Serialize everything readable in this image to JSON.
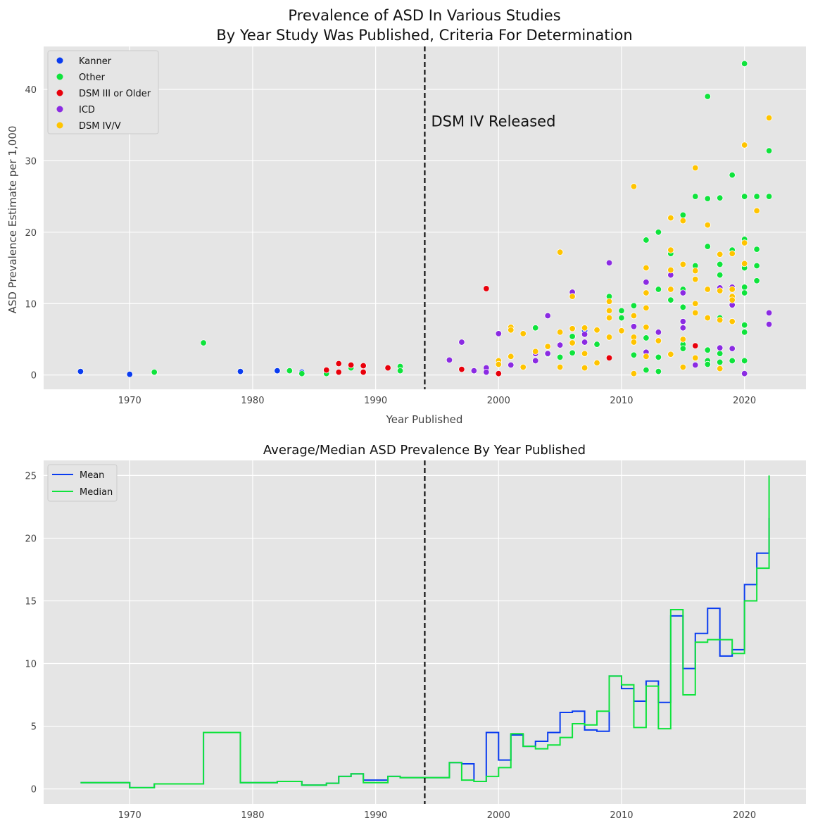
{
  "colors": {
    "kanner": "#0a3cf0",
    "other": "#0fe33c",
    "dsm3": "#e8000b",
    "icd": "#8b2be2",
    "dsm45": "#ffc400",
    "mean": "#0a3cf0",
    "median": "#0fe33c",
    "panel_bg": "#e5e5e5",
    "grid": "#ffffff"
  },
  "chart_data": [
    {
      "type": "scatter",
      "title_line1": "Prevalence of ASD In Various Studies",
      "title_line2": "By Year Study Was Published, Criteria For Determination",
      "xlabel": "Year Published",
      "ylabel": "ASD Prevalence Estimate per 1,000",
      "xlim": [
        1963,
        2025
      ],
      "ylim": [
        -2,
        46
      ],
      "xticks": [
        1970,
        1980,
        1990,
        2000,
        2010,
        2020
      ],
      "yticks": [
        0,
        10,
        20,
        30,
        40
      ],
      "grid": true,
      "legend_position": "top-left",
      "vline": {
        "x": 1994,
        "label": "DSM IV Released",
        "style": "dashed"
      },
      "series": [
        {
          "name": "Kanner",
          "color_key": "kanner",
          "points": [
            [
              1966,
              0.5
            ],
            [
              1970,
              0.1
            ],
            [
              1979,
              0.5
            ],
            [
              1982,
              0.6
            ],
            [
              1984,
              0.4
            ],
            [
              2007,
              6.2
            ]
          ]
        },
        {
          "name": "Other",
          "color_key": "other",
          "points": [
            [
              1972,
              0.4
            ],
            [
              1976,
              4.5
            ],
            [
              1983,
              0.6
            ],
            [
              1984,
              0.2
            ],
            [
              1986,
              0.2
            ],
            [
              1988,
              1.0
            ],
            [
              1992,
              1.2
            ],
            [
              1992,
              0.6
            ],
            [
              2003,
              6.6
            ],
            [
              2004,
              2.9
            ],
            [
              2005,
              2.5
            ],
            [
              2006,
              3.1
            ],
            [
              2006,
              5.4
            ],
            [
              2008,
              4.3
            ],
            [
              2009,
              11.0
            ],
            [
              2010,
              9.0
            ],
            [
              2010,
              8.0
            ],
            [
              2011,
              9.7
            ],
            [
              2011,
              2.8
            ],
            [
              2012,
              18.9
            ],
            [
              2012,
              5.2
            ],
            [
              2012,
              0.7
            ],
            [
              2013,
              20.0
            ],
            [
              2013,
              12.0
            ],
            [
              2013,
              2.5
            ],
            [
              2013,
              0.5
            ],
            [
              2014,
              17.0
            ],
            [
              2014,
              10.5
            ],
            [
              2015,
              22.4
            ],
            [
              2015,
              12.0
            ],
            [
              2015,
              9.5
            ],
            [
              2015,
              4.3
            ],
            [
              2015,
              3.7
            ],
            [
              2016,
              25.0
            ],
            [
              2016,
              15.3
            ],
            [
              2017,
              39.0
            ],
            [
              2017,
              24.7
            ],
            [
              2017,
              18.0
            ],
            [
              2017,
              3.5
            ],
            [
              2017,
              2.0
            ],
            [
              2017,
              1.5
            ],
            [
              2018,
              24.8
            ],
            [
              2018,
              15.5
            ],
            [
              2018,
              14.0
            ],
            [
              2018,
              12.0
            ],
            [
              2018,
              8.0
            ],
            [
              2018,
              3.0
            ],
            [
              2018,
              1.8
            ],
            [
              2019,
              28.0
            ],
            [
              2019,
              17.5
            ],
            [
              2019,
              2.0
            ],
            [
              2020,
              43.6
            ],
            [
              2020,
              25.0
            ],
            [
              2020,
              19.0
            ],
            [
              2020,
              15.0
            ],
            [
              2020,
              12.3
            ],
            [
              2020,
              11.5
            ],
            [
              2020,
              7.0
            ],
            [
              2020,
              6.0
            ],
            [
              2020,
              2.0
            ],
            [
              2021,
              25.0
            ],
            [
              2021,
              17.6
            ],
            [
              2021,
              15.3
            ],
            [
              2021,
              13.2
            ],
            [
              2022,
              31.4
            ],
            [
              2022,
              25.0
            ]
          ]
        },
        {
          "name": "DSM III or Older",
          "color_key": "dsm3",
          "points": [
            [
              1986,
              0.7
            ],
            [
              1987,
              1.6
            ],
            [
              1987,
              0.4
            ],
            [
              1988,
              1.4
            ],
            [
              1989,
              1.3
            ],
            [
              1989,
              0.4
            ],
            [
              1991,
              1.0
            ],
            [
              1997,
              0.8
            ],
            [
              1999,
              12.1
            ],
            [
              2000,
              0.2
            ],
            [
              2009,
              2.4
            ],
            [
              2016,
              4.1
            ]
          ]
        },
        {
          "name": "ICD",
          "color_key": "icd",
          "points": [
            [
              1996,
              2.1
            ],
            [
              1997,
              4.6
            ],
            [
              1998,
              0.6
            ],
            [
              1999,
              1.0
            ],
            [
              1999,
              0.4
            ],
            [
              2000,
              5.8
            ],
            [
              2001,
              1.4
            ],
            [
              2003,
              3.0
            ],
            [
              2003,
              2.0
            ],
            [
              2004,
              8.3
            ],
            [
              2004,
              3.0
            ],
            [
              2005,
              4.2
            ],
            [
              2006,
              11.6
            ],
            [
              2007,
              5.7
            ],
            [
              2007,
              4.6
            ],
            [
              2009,
              15.7
            ],
            [
              2011,
              6.8
            ],
            [
              2012,
              13.0
            ],
            [
              2012,
              3.2
            ],
            [
              2013,
              6.0
            ],
            [
              2014,
              14.0
            ],
            [
              2015,
              11.5
            ],
            [
              2015,
              7.5
            ],
            [
              2015,
              6.6
            ],
            [
              2016,
              1.4
            ],
            [
              2018,
              12.2
            ],
            [
              2018,
              3.8
            ],
            [
              2019,
              12.3
            ],
            [
              2019,
              9.8
            ],
            [
              2019,
              3.7
            ],
            [
              2020,
              0.2
            ],
            [
              2022,
              8.7
            ],
            [
              2022,
              7.1
            ]
          ]
        },
        {
          "name": "DSM IV/V",
          "color_key": "dsm45",
          "points": [
            [
              2000,
              2.0
            ],
            [
              2000,
              1.5
            ],
            [
              2001,
              6.7
            ],
            [
              2001,
              6.3
            ],
            [
              2001,
              2.6
            ],
            [
              2002,
              5.8
            ],
            [
              2002,
              1.1
            ],
            [
              2003,
              3.3
            ],
            [
              2004,
              4.0
            ],
            [
              2005,
              17.2
            ],
            [
              2005,
              6.0
            ],
            [
              2005,
              1.1
            ],
            [
              2006,
              11.0
            ],
            [
              2006,
              6.5
            ],
            [
              2006,
              4.5
            ],
            [
              2007,
              6.6
            ],
            [
              2007,
              3.0
            ],
            [
              2007,
              1.0
            ],
            [
              2008,
              6.3
            ],
            [
              2008,
              1.7
            ],
            [
              2009,
              10.3
            ],
            [
              2009,
              9.0
            ],
            [
              2009,
              8.0
            ],
            [
              2009,
              5.3
            ],
            [
              2010,
              6.2
            ],
            [
              2011,
              26.4
            ],
            [
              2011,
              8.3
            ],
            [
              2011,
              5.3
            ],
            [
              2011,
              4.6
            ],
            [
              2011,
              0.2
            ],
            [
              2012,
              15.0
            ],
            [
              2012,
              11.5
            ],
            [
              2012,
              9.4
            ],
            [
              2012,
              6.7
            ],
            [
              2012,
              2.6
            ],
            [
              2013,
              4.8
            ],
            [
              2014,
              22.0
            ],
            [
              2014,
              17.5
            ],
            [
              2014,
              14.7
            ],
            [
              2014,
              12.0
            ],
            [
              2014,
              2.9
            ],
            [
              2015,
              21.6
            ],
            [
              2015,
              15.5
            ],
            [
              2015,
              5.0
            ],
            [
              2015,
              1.1
            ],
            [
              2016,
              29.0
            ],
            [
              2016,
              14.6
            ],
            [
              2016,
              13.4
            ],
            [
              2016,
              10.0
            ],
            [
              2016,
              8.7
            ],
            [
              2016,
              2.4
            ],
            [
              2017,
              21.0
            ],
            [
              2017,
              12.0
            ],
            [
              2017,
              8.0
            ],
            [
              2018,
              16.9
            ],
            [
              2018,
              11.8
            ],
            [
              2018,
              7.7
            ],
            [
              2018,
              0.9
            ],
            [
              2019,
              17.0
            ],
            [
              2019,
              12.0
            ],
            [
              2019,
              11.0
            ],
            [
              2019,
              10.5
            ],
            [
              2019,
              7.5
            ],
            [
              2020,
              32.2
            ],
            [
              2020,
              18.5
            ],
            [
              2020,
              15.6
            ],
            [
              2021,
              23.0
            ],
            [
              2022,
              36.0
            ]
          ]
        }
      ]
    },
    {
      "type": "line",
      "step": true,
      "title": "Average/Median ASD Prevalence By Year Published",
      "xlim": [
        1963,
        2025
      ],
      "ylim": [
        -1.2,
        26.2
      ],
      "xticks": [
        1970,
        1980,
        1990,
        2000,
        2010,
        2020
      ],
      "yticks": [
        0,
        5,
        10,
        15,
        20,
        25
      ],
      "grid": true,
      "legend_position": "top-left",
      "vline": {
        "x": 1994,
        "style": "dashed"
      },
      "x": [
        1966,
        1970,
        1972,
        1976,
        1979,
        1982,
        1983,
        1984,
        1986,
        1987,
        1988,
        1989,
        1991,
        1992,
        1996,
        1997,
        1998,
        1999,
        2000,
        2001,
        2002,
        2003,
        2004,
        2005,
        2006,
        2007,
        2008,
        2009,
        2010,
        2011,
        2012,
        2013,
        2014,
        2015,
        2016,
        2017,
        2018,
        2019,
        2020,
        2021,
        2022
      ],
      "series": [
        {
          "name": "Mean",
          "color_key": "mean",
          "values": [
            0.5,
            0.1,
            0.4,
            4.5,
            0.5,
            0.6,
            0.6,
            0.3,
            0.45,
            1.0,
            1.2,
            0.7,
            1.0,
            0.9,
            2.1,
            2.0,
            0.6,
            4.5,
            2.3,
            4.3,
            3.4,
            3.8,
            4.5,
            6.1,
            6.2,
            4.7,
            4.6,
            9.0,
            8.0,
            7.0,
            8.6,
            6.9,
            13.8,
            9.6,
            12.4,
            14.4,
            10.6,
            11.1,
            16.3,
            18.8,
            21.6
          ]
        },
        {
          "name": "Median",
          "color_key": "median",
          "values": [
            0.5,
            0.1,
            0.4,
            4.5,
            0.5,
            0.6,
            0.6,
            0.3,
            0.45,
            1.0,
            1.2,
            0.5,
            1.0,
            0.9,
            2.1,
            0.7,
            0.6,
            1.0,
            1.7,
            4.4,
            3.4,
            3.2,
            3.5,
            4.1,
            5.2,
            5.1,
            6.2,
            9.0,
            8.3,
            4.9,
            8.2,
            4.8,
            14.3,
            7.5,
            11.7,
            11.9,
            11.9,
            10.8,
            15.0,
            17.6,
            25.0
          ]
        }
      ]
    }
  ]
}
